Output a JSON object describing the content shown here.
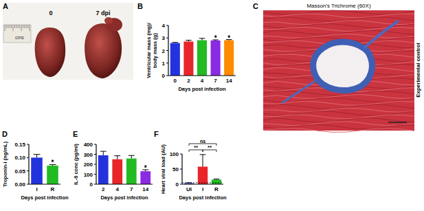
{
  "chart_data": [
    {
      "type": "bar",
      "panel_label": "B",
      "ylabel": [
        "Ventricular mass (mg)/",
        "body mass (g)"
      ],
      "xlabel": "Days post infection",
      "categories": [
        "0",
        "2",
        "4",
        "7",
        "14"
      ],
      "values": [
        2.6,
        2.72,
        2.82,
        2.8,
        2.82
      ],
      "errors": [
        0.05,
        0.1,
        0.15,
        0.05,
        0.05
      ],
      "colors": [
        "#2233dd",
        "#e8262a",
        "#22bb22",
        "#8a2be2",
        "#ff8c00"
      ],
      "ylim": [
        0,
        4
      ],
      "yticks": [
        0,
        1,
        2,
        3,
        4
      ],
      "annotations": [
        {
          "text": "*",
          "category_index": 3
        },
        {
          "text": "*",
          "category_index": 4
        }
      ]
    },
    {
      "type": "bar",
      "panel_label": "D",
      "ylabel": [
        "Troponin-I (ng/mL)"
      ],
      "xlabel": "Days post infection",
      "categories": [
        "I",
        "R"
      ],
      "values": [
        0.1,
        0.07
      ],
      "errors": [
        0.012,
        0.004
      ],
      "colors": [
        "#2233dd",
        "#22bb22"
      ],
      "ylim": [
        0,
        0.15
      ],
      "yticks": [
        {
          "value": 0,
          "label": "0.00"
        },
        {
          "value": 0.05,
          "label": "0.05"
        },
        {
          "value": 0.1,
          "label": "0.10"
        },
        {
          "value": 0.15,
          "label": "0.15"
        }
      ],
      "annotations": [
        {
          "text": "*",
          "category_index": 1
        }
      ]
    },
    {
      "type": "bar",
      "panel_label": "E",
      "ylabel": [
        "IL-6 conc (pg/ml)"
      ],
      "xlabel": "Days post infection",
      "categories": [
        "2",
        "4",
        "7",
        "14"
      ],
      "values": [
        290,
        250,
        258,
        130
      ],
      "errors": [
        40,
        35,
        30,
        15
      ],
      "colors": [
        "#2233dd",
        "#e8262a",
        "#22bb22",
        "#8a2be2"
      ],
      "ylim": [
        0,
        400
      ],
      "yticks": [
        0,
        100,
        200,
        300,
        400
      ],
      "annotations": [
        {
          "text": "*",
          "category_index": 3
        }
      ]
    },
    {
      "type": "bar",
      "panel_label": "F",
      "ylabel": [
        "Heart viral load (AU)"
      ],
      "xlabel": "Days post infection",
      "categories": [
        "UI",
        "I",
        "R"
      ],
      "values": [
        3,
        58,
        15
      ],
      "errors": [
        2,
        40,
        2
      ],
      "colors": [
        "#2233dd",
        "#e8262a",
        "#22bb22"
      ],
      "ylim": [
        0,
        100
      ],
      "yticks": [
        0,
        50,
        100
      ],
      "reference_line": 5,
      "annotations": [
        {
          "text": "ns",
          "from": 0,
          "to": 2
        },
        {
          "text": "**",
          "from": 0,
          "to": 1
        },
        {
          "text": "**",
          "from": 1,
          "to": 2
        }
      ]
    }
  ],
  "images": [
    {
      "panel_label": "A",
      "labels": [
        "0",
        "7 dpi"
      ],
      "ruler_label": "cms"
    },
    {
      "panel_label": "C",
      "title": "Masson's Trichrome (60X)",
      "side_label": "Experimental control"
    }
  ]
}
